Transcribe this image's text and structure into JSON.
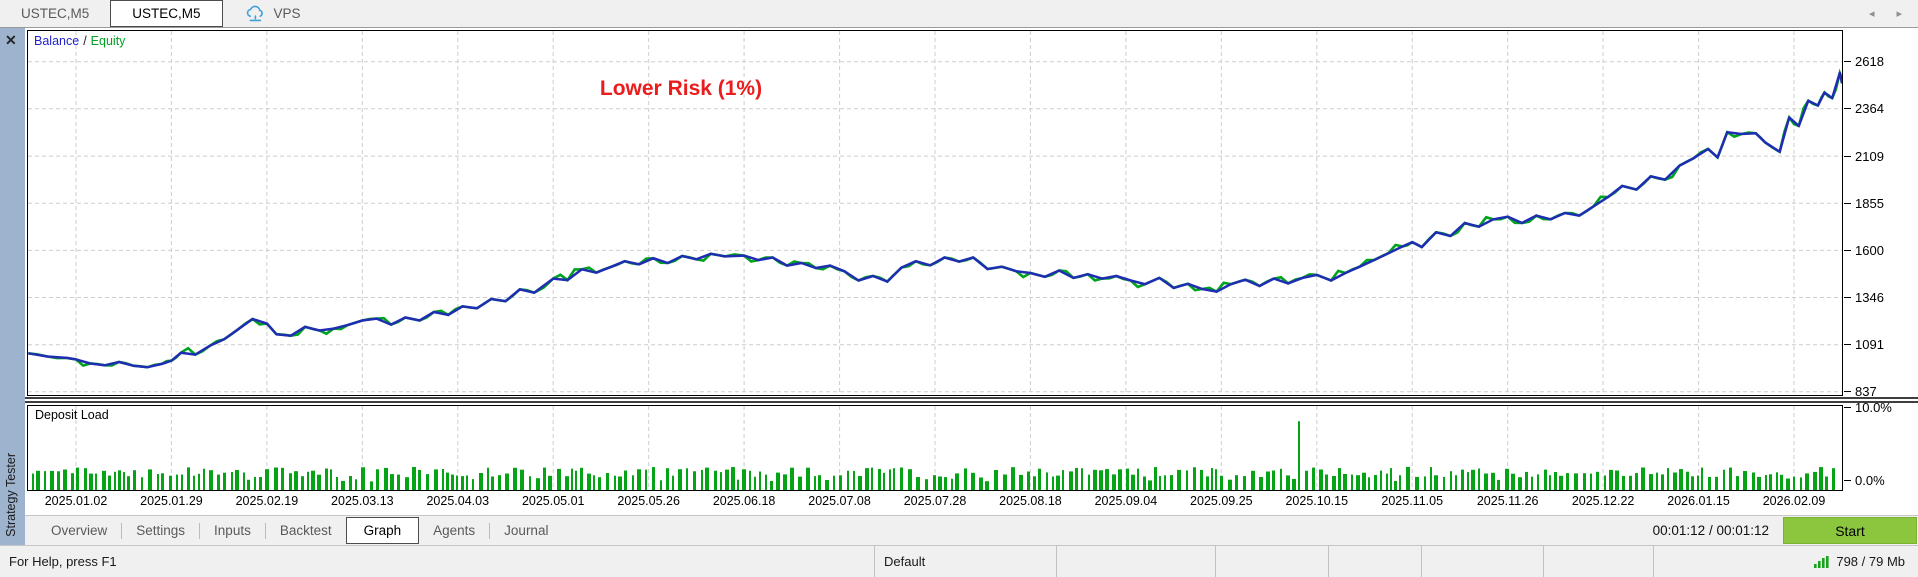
{
  "titlebar": {
    "tabs": [
      {
        "label": "USTEC,M5",
        "active": false
      },
      {
        "label": "USTEC,M5",
        "active": true
      },
      {
        "label": "VPS",
        "active": false,
        "icon": "vps-cloud-icon"
      }
    ],
    "scroll_left_icon": "◂",
    "scroll_right_icon": "▸"
  },
  "sidebar": {
    "title": "Strategy Tester",
    "close_icon": "✕"
  },
  "chart": {
    "legend_separator": "/",
    "colors": {
      "balance": "#1e2db2",
      "equity": "#00a31e",
      "deposit_bar": "#07a317",
      "annotation": "#ea1c1c",
      "grid": "#cdcdcd",
      "start_button": "#8cc63f",
      "sidebar": "#9db3ce"
    }
  },
  "chart_data": [
    {
      "type": "line",
      "title": "Lower Risk (1%)",
      "x_tick_labels": [
        "2025.01.02",
        "2025.01.29",
        "2025.02.19",
        "2025.03.13",
        "2025.04.03",
        "2025.05.01",
        "2025.05.26",
        "2025.06.18",
        "2025.07.08",
        "2025.07.28",
        "2025.08.18",
        "2025.09.04",
        "2025.09.25",
        "2025.10.15",
        "2025.11.05",
        "2025.11.26",
        "2025.12.22",
        "2026.01.15",
        "2026.02.09"
      ],
      "y_ticks": [
        837,
        1091,
        1346,
        1600,
        1855,
        2109,
        2364,
        2618
      ],
      "ylim": [
        820,
        2784
      ],
      "grid": "dashed",
      "legend_position": "top-left",
      "series": [
        {
          "name": "Balance",
          "points_i_value": [
            [
              -0.5,
              1045
            ],
            [
              -0.3,
              1028
            ],
            [
              -0.1,
              1020
            ],
            [
              0,
              1012
            ],
            [
              0.15,
              990
            ],
            [
              0.3,
              980
            ],
            [
              0.45,
              998
            ],
            [
              0.6,
              978
            ],
            [
              0.75,
              970
            ],
            [
              0.9,
              988
            ],
            [
              1.0,
              1005
            ],
            [
              1.1,
              1048
            ],
            [
              1.25,
              1038
            ],
            [
              1.4,
              1085
            ],
            [
              1.55,
              1120
            ],
            [
              1.7,
              1175
            ],
            [
              1.85,
              1230
            ],
            [
              2.0,
              1205
            ],
            [
              2.1,
              1148
            ],
            [
              2.25,
              1140
            ],
            [
              2.4,
              1188
            ],
            [
              2.55,
              1168
            ],
            [
              2.7,
              1178
            ],
            [
              2.85,
              1198
            ],
            [
              3.0,
              1222
            ],
            [
              3.15,
              1232
            ],
            [
              3.3,
              1200
            ],
            [
              3.45,
              1238
            ],
            [
              3.6,
              1222
            ],
            [
              3.75,
              1268
            ],
            [
              3.9,
              1252
            ],
            [
              4.05,
              1298
            ],
            [
              4.2,
              1288
            ],
            [
              4.35,
              1338
            ],
            [
              4.5,
              1326
            ],
            [
              4.65,
              1390
            ],
            [
              4.8,
              1372
            ],
            [
              5.0,
              1448
            ],
            [
              5.15,
              1440
            ],
            [
              5.3,
              1498
            ],
            [
              5.45,
              1480
            ],
            [
              5.6,
              1510
            ],
            [
              5.75,
              1542
            ],
            [
              5.9,
              1525
            ],
            [
              6.05,
              1558
            ],
            [
              6.2,
              1532
            ],
            [
              6.35,
              1570
            ],
            [
              6.5,
              1552
            ],
            [
              6.65,
              1582
            ],
            [
              6.8,
              1568
            ],
            [
              7.0,
              1572
            ],
            [
              7.15,
              1548
            ],
            [
              7.3,
              1562
            ],
            [
              7.45,
              1518
            ],
            [
              7.6,
              1532
            ],
            [
              7.75,
              1505
            ],
            [
              7.9,
              1518
            ],
            [
              8.05,
              1488
            ],
            [
              8.2,
              1438
            ],
            [
              8.35,
              1462
            ],
            [
              8.5,
              1432
            ],
            [
              8.65,
              1508
            ],
            [
              8.8,
              1542
            ],
            [
              8.95,
              1520
            ],
            [
              9.1,
              1562
            ],
            [
              9.25,
              1540
            ],
            [
              9.4,
              1562
            ],
            [
              9.55,
              1500
            ],
            [
              9.7,
              1512
            ],
            [
              9.85,
              1488
            ],
            [
              10.0,
              1478
            ],
            [
              10.15,
              1458
            ],
            [
              10.3,
              1492
            ],
            [
              10.45,
              1452
            ],
            [
              10.6,
              1472
            ],
            [
              10.75,
              1448
            ],
            [
              10.9,
              1462
            ],
            [
              11.05,
              1438
            ],
            [
              11.2,
              1418
            ],
            [
              11.35,
              1452
            ],
            [
              11.5,
              1398
            ],
            [
              11.65,
              1420
            ],
            [
              11.8,
              1392
            ],
            [
              11.95,
              1378
            ],
            [
              12.1,
              1418
            ],
            [
              12.25,
              1442
            ],
            [
              12.4,
              1408
            ],
            [
              12.55,
              1448
            ],
            [
              12.7,
              1422
            ],
            [
              12.85,
              1452
            ],
            [
              13.0,
              1468
            ],
            [
              13.15,
              1438
            ],
            [
              13.3,
              1478
            ],
            [
              13.45,
              1512
            ],
            [
              13.6,
              1548
            ],
            [
              13.75,
              1585
            ],
            [
              13.9,
              1622
            ],
            [
              14.0,
              1645
            ],
            [
              14.1,
              1618
            ],
            [
              14.25,
              1698
            ],
            [
              14.4,
              1678
            ],
            [
              14.55,
              1748
            ],
            [
              14.7,
              1728
            ],
            [
              14.85,
              1768
            ],
            [
              15.0,
              1782
            ],
            [
              15.15,
              1748
            ],
            [
              15.3,
              1788
            ],
            [
              15.45,
              1768
            ],
            [
              15.6,
              1802
            ],
            [
              15.75,
              1788
            ],
            [
              15.9,
              1838
            ],
            [
              16.05,
              1888
            ],
            [
              16.2,
              1948
            ],
            [
              16.35,
              1928
            ],
            [
              16.5,
              2000
            ],
            [
              16.65,
              1982
            ],
            [
              16.8,
              2058
            ],
            [
              16.95,
              2098
            ],
            [
              17.1,
              2148
            ],
            [
              17.2,
              2102
            ],
            [
              17.3,
              2238
            ],
            [
              17.45,
              2228
            ],
            [
              17.6,
              2232
            ],
            [
              17.7,
              2182
            ],
            [
              17.85,
              2132
            ],
            [
              17.95,
              2318
            ],
            [
              18.05,
              2272
            ],
            [
              18.15,
              2408
            ],
            [
              18.25,
              2382
            ],
            [
              18.32,
              2452
            ],
            [
              18.4,
              2422
            ],
            [
              18.48,
              2558
            ],
            [
              18.51,
              2502
            ]
          ]
        },
        {
          "name": "Equity",
          "note": "tracks Balance with small random deviations",
          "jitter_max": 30
        }
      ]
    },
    {
      "type": "bar",
      "title": "Deposit Load",
      "ylim_pct": [
        0,
        10
      ],
      "y_tick_labels": [
        "0.0%",
        "10.0%"
      ],
      "bars_spec": {
        "count_approx": 310,
        "typical_height_pct": [
          1.6,
          2.9
        ],
        "spike": {
          "x_frac": 0.699,
          "height_pct": 8.6
        }
      },
      "x_axis": "shared with main chart date ticks",
      "grid": "dashed-vertical"
    }
  ],
  "tabs": {
    "items": [
      "Overview",
      "Settings",
      "Inputs",
      "Backtest",
      "Graph",
      "Agents",
      "Journal"
    ],
    "active": "Graph"
  },
  "runbar": {
    "timer": "00:01:12 / 00:01:12",
    "start_label": "Start"
  },
  "statusbar": {
    "help": "For Help, press F1",
    "profile": "Default",
    "memory": "798 / 79 Mb"
  }
}
